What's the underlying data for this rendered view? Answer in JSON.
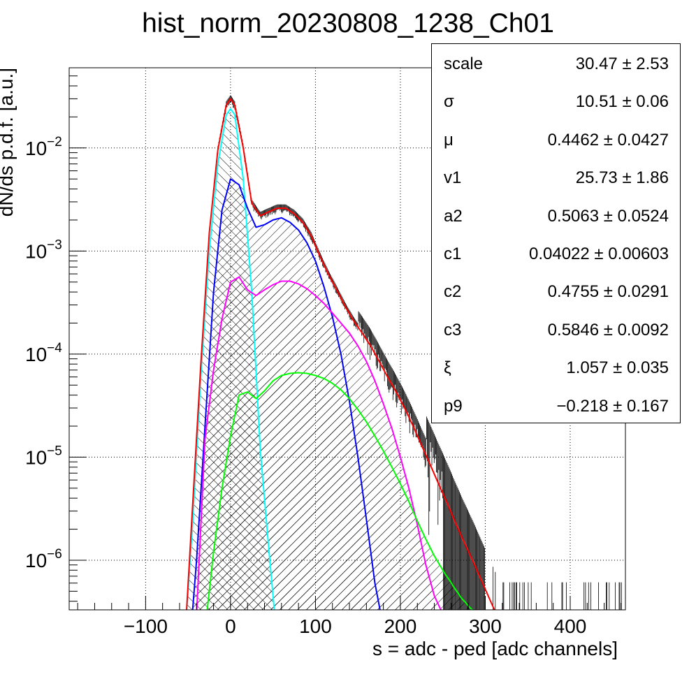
{
  "chart_data": {
    "type": "line",
    "title": "hist_norm_20230808_1238_Ch01",
    "xlabel": "s = adc - ped [adc channels]",
    "ylabel": "dN/ds p.d.f. [a.u.]",
    "xlim": [
      -190,
      465
    ],
    "ylim": [
      3.3e-07,
      0.06
    ],
    "yscale": "log",
    "grid": true,
    "x_ticks": [
      -100,
      0,
      100,
      200,
      300,
      400
    ],
    "y_ticks": [
      {
        "base": "10",
        "exp": "−6",
        "value": 1e-06
      },
      {
        "base": "10",
        "exp": "−5",
        "value": 1e-05
      },
      {
        "base": "10",
        "exp": "−4",
        "value": 0.0001
      },
      {
        "base": "10",
        "exp": "−3",
        "value": 0.001
      },
      {
        "base": "10",
        "exp": "−2",
        "value": 0.01
      }
    ],
    "series": [
      {
        "color": "#00ffff",
        "hatch": true,
        "x": [
          -52,
          -45,
          -35,
          -25,
          -15,
          -5,
          0,
          5,
          15,
          25,
          35,
          45,
          52
        ],
        "y": [
          3e-07,
          2e-06,
          6e-05,
          0.001,
          0.007,
          0.021,
          0.024,
          0.021,
          0.005,
          0.0004,
          1.2e-05,
          1.3e-06,
          3e-07
        ]
      },
      {
        "color": "#0000ff",
        "hatch": true,
        "x": [
          -45,
          -40,
          -30,
          -20,
          -10,
          0,
          10,
          20,
          30,
          40,
          50,
          60,
          70,
          80,
          90,
          100,
          110,
          120,
          130,
          140,
          150,
          160,
          170,
          177
        ],
        "y": [
          3e-07,
          1e-06,
          2e-05,
          0.0004,
          0.0025,
          0.005,
          0.0044,
          0.0026,
          0.0017,
          0.0018,
          0.002,
          0.0021,
          0.0019,
          0.0016,
          0.0012,
          0.0008,
          0.00045,
          0.00023,
          0.0001,
          3.5e-05,
          1e-05,
          2.5e-06,
          6e-07,
          3e-07
        ]
      },
      {
        "color": "#ff00ff",
        "hatch": true,
        "x": [
          -40,
          -30,
          -20,
          -10,
          0,
          10,
          20,
          30,
          40,
          50,
          60,
          70,
          80,
          90,
          100,
          110,
          120,
          130,
          140,
          150,
          160,
          170,
          180,
          190,
          200,
          210,
          220,
          230,
          240,
          250
        ],
        "y": [
          3e-07,
          1.5e-05,
          7e-05,
          0.00022,
          0.0005,
          0.00056,
          0.00042,
          0.00037,
          0.00042,
          0.00047,
          0.00051,
          0.00051,
          0.00048,
          0.00043,
          0.00037,
          0.00031,
          0.00025,
          0.0002,
          0.00016,
          0.00012,
          8.5e-05,
          5.5e-05,
          3.3e-05,
          1.9e-05,
          1e-05,
          5e-06,
          2.2e-06,
          9e-07,
          4.5e-07,
          3e-07
        ]
      },
      {
        "color": "#00ff00",
        "hatch": true,
        "x": [
          -28,
          -20,
          -10,
          0,
          10,
          20,
          30,
          40,
          50,
          60,
          70,
          80,
          90,
          100,
          110,
          120,
          130,
          140,
          150,
          160,
          170,
          180,
          190,
          200,
          210,
          220,
          230,
          240,
          250,
          260,
          270,
          280,
          290
        ],
        "y": [
          3e-07,
          1.2e-06,
          5e-06,
          1.6e-05,
          4e-05,
          4.3e-05,
          3.7e-05,
          4.4e-05,
          5.5e-05,
          6.2e-05,
          6.5e-05,
          6.6e-05,
          6.5e-05,
          6.2e-05,
          5.8e-05,
          5.2e-05,
          4.5e-05,
          3.7e-05,
          2.9e-05,
          2.2e-05,
          1.6e-05,
          1.15e-05,
          8e-06,
          5.5e-06,
          3.7e-06,
          2.4e-06,
          1.6e-06,
          1.1e-06,
          8e-07,
          6e-07,
          4.5e-07,
          3.6e-07,
          3e-07
        ]
      },
      {
        "color": "#ff0000",
        "hatch": false,
        "x": [
          -52,
          -45,
          -35,
          -25,
          -15,
          -5,
          0,
          5,
          15,
          25,
          35,
          45,
          55,
          65,
          75,
          85,
          95,
          105,
          115,
          125,
          135,
          145,
          155,
          165,
          175,
          185,
          195,
          205,
          215,
          225,
          235,
          245,
          255,
          265,
          275,
          285,
          295,
          305,
          313
        ],
        "y": [
          3e-07,
          3e-06,
          8e-05,
          0.0015,
          0.0095,
          0.026,
          0.03,
          0.026,
          0.01,
          0.0029,
          0.0022,
          0.0024,
          0.0026,
          0.0026,
          0.0023,
          0.0019,
          0.0014,
          0.0009,
          0.0006,
          0.00042,
          0.00029,
          0.00021,
          0.00016,
          0.00012,
          8.5e-05,
          6e-05,
          4.3e-05,
          3e-05,
          2e-05,
          1.3e-05,
          8.5e-06,
          5.5e-06,
          3.6e-06,
          2.3e-06,
          1.5e-06,
          1e-06,
          6.5e-07,
          4.2e-07,
          3e-07
        ]
      }
    ]
  },
  "stats": [
    {
      "name": "scale",
      "value": "30.47 ± 2.53"
    },
    {
      "name": "σ",
      "value": "10.51 ± 0.06"
    },
    {
      "name": "μ",
      "value": "0.4462 ± 0.0427"
    },
    {
      "name": "v1",
      "value": "25.73 ± 1.86"
    },
    {
      "name": "a2",
      "value": "0.5063 ± 0.0524"
    },
    {
      "name": "c1",
      "value": "0.04022 ± 0.00603"
    },
    {
      "name": "c2",
      "value": "0.4755 ± 0.0291"
    },
    {
      "name": "c3",
      "value": "0.5846 ± 0.0092"
    },
    {
      "name": "ξ",
      "value": "1.057 ± 0.035"
    },
    {
      "name": "p9",
      "value": "−0.218 ± 0.167"
    }
  ]
}
